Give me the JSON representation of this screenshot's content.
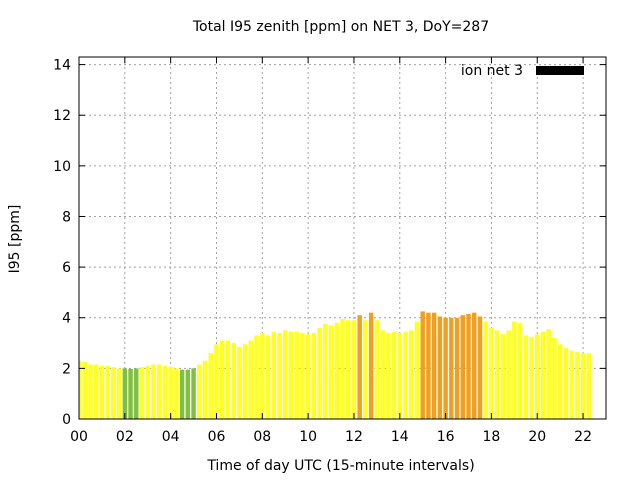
{
  "chart_data": {
    "type": "bar",
    "title": "Total I95 zenith [ppm] on NET 3, DoY=287",
    "xlabel": "Time of day UTC (15-minute intervals)",
    "ylabel": "I95 [ppm]",
    "xlim": [
      0,
      23
    ],
    "ylim": [
      0,
      14.3
    ],
    "x_ticks": [
      "00",
      "02",
      "04",
      "06",
      "08",
      "10",
      "12",
      "14",
      "16",
      "18",
      "20",
      "22"
    ],
    "y_ticks": [
      "0",
      "2",
      "4",
      "6",
      "8",
      "10",
      "12",
      "14"
    ],
    "grid": true,
    "legend": {
      "position": "top-right",
      "label": "ion net 3",
      "color": "#000000"
    },
    "bar_interval_hours": 0.25,
    "colors": {
      "green": "#80c040",
      "yellow": "#ffff20",
      "orange": "#f0a020"
    },
    "values": [
      2.3,
      2.25,
      2.15,
      2.15,
      2.1,
      2.1,
      2.05,
      2.0,
      2.0,
      1.98,
      2.0,
      2.05,
      2.1,
      2.15,
      2.15,
      2.1,
      2.05,
      2.0,
      1.95,
      1.95,
      2.0,
      2.15,
      2.3,
      2.6,
      2.95,
      3.1,
      3.1,
      3.0,
      2.85,
      2.95,
      3.1,
      3.3,
      3.4,
      3.3,
      3.45,
      3.4,
      3.5,
      3.45,
      3.45,
      3.4,
      3.35,
      3.4,
      3.6,
      3.75,
      3.7,
      3.8,
      3.95,
      3.9,
      3.9,
      4.1,
      3.9,
      4.2,
      3.9,
      3.5,
      3.4,
      3.45,
      3.4,
      3.45,
      3.5,
      3.85,
      4.25,
      4.2,
      4.2,
      4.05,
      4.0,
      4.0,
      4.0,
      4.1,
      4.15,
      4.2,
      4.05,
      3.85,
      3.6,
      3.5,
      3.35,
      3.5,
      3.85,
      3.8,
      3.3,
      3.25,
      3.35,
      3.45,
      3.55,
      3.2,
      2.95,
      2.8,
      2.7,
      2.65,
      2.6,
      2.6
    ],
    "bar_colors": [
      "yellow",
      "yellow",
      "yellow",
      "yellow",
      "yellow",
      "yellow",
      "yellow",
      "yellow",
      "green",
      "green",
      "green",
      "yellow",
      "yellow",
      "yellow",
      "yellow",
      "yellow",
      "yellow",
      "yellow",
      "green",
      "green",
      "green",
      "yellow",
      "yellow",
      "yellow",
      "yellow",
      "yellow",
      "yellow",
      "yellow",
      "yellow",
      "yellow",
      "yellow",
      "yellow",
      "yellow",
      "yellow",
      "yellow",
      "yellow",
      "yellow",
      "yellow",
      "yellow",
      "yellow",
      "yellow",
      "yellow",
      "yellow",
      "yellow",
      "yellow",
      "yellow",
      "yellow",
      "yellow",
      "yellow",
      "orange",
      "yellow",
      "orange",
      "yellow",
      "yellow",
      "yellow",
      "yellow",
      "yellow",
      "yellow",
      "yellow",
      "yellow",
      "orange",
      "orange",
      "orange",
      "orange",
      "orange",
      "orange",
      "orange",
      "orange",
      "orange",
      "orange",
      "orange",
      "yellow",
      "yellow",
      "yellow",
      "yellow",
      "yellow",
      "yellow",
      "yellow",
      "yellow",
      "yellow",
      "yellow",
      "yellow",
      "yellow",
      "yellow",
      "yellow",
      "yellow",
      "yellow",
      "yellow",
      "yellow",
      "yellow"
    ]
  }
}
